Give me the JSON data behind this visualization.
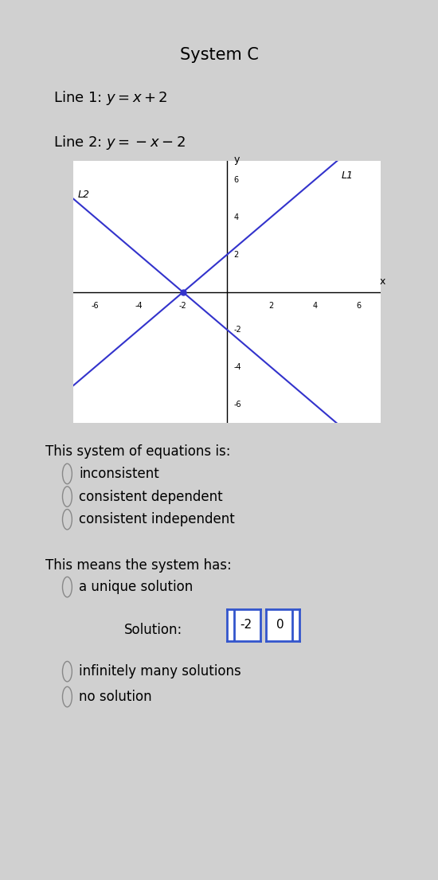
{
  "title": "System C",
  "line1_label": "Line 1: $y=x+2$",
  "line2_label": "Line 2: $y=-x-2$",
  "line1_eq": "y=x+2",
  "line2_eq": "y=-x-2",
  "graph_label_L1": "L1",
  "graph_label_L2": "L2",
  "line_color": "#3333cc",
  "axis_range": [
    -7,
    7
  ],
  "tick_values": [
    -6,
    -4,
    -2,
    2,
    4,
    6
  ],
  "intersection": [
    -2,
    0
  ],
  "bg_color": "#f0f0f0",
  "card_bg": "#f5f5f5",
  "question1": "This system of equations is:",
  "options1": [
    "inconsistent",
    "consistent dependent",
    "consistent independent"
  ],
  "question2": "This means the system has:",
  "options2": [
    "a unique solution",
    "infinitely many solutions",
    "no solution"
  ],
  "solution_label": "Solution:",
  "solution_box1": "-2",
  "solution_box2": "0",
  "title_fontsize": 15,
  "label_fontsize": 13,
  "text_fontsize": 12
}
